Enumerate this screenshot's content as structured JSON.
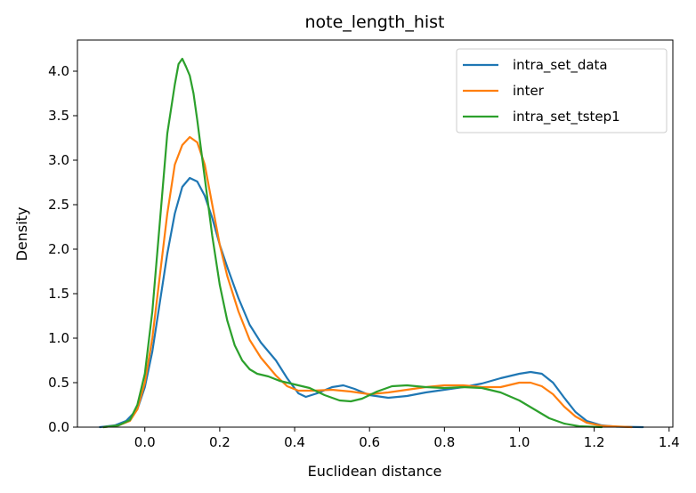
{
  "chart_data": {
    "type": "line",
    "title": "note_length_hist",
    "xlabel": "Euclidean distance",
    "ylabel": "Density",
    "xlim": [
      -0.18,
      1.41
    ],
    "ylim": [
      0.0,
      4.35
    ],
    "xticks": [
      0.0,
      0.2,
      0.4,
      0.6,
      0.8,
      1.0,
      1.2,
      1.4
    ],
    "xtick_labels": [
      "0.0",
      "0.2",
      "0.4",
      "0.6",
      "0.8",
      "1.0",
      "1.2",
      "1.4"
    ],
    "yticks": [
      0.0,
      0.5,
      1.0,
      1.5,
      2.0,
      2.5,
      3.0,
      3.5,
      4.0
    ],
    "ytick_labels": [
      "0.0",
      "0.5",
      "1.0",
      "1.5",
      "2.0",
      "2.5",
      "3.0",
      "3.5",
      "4.0"
    ],
    "grid": false,
    "legend_position": "top-right",
    "series": [
      {
        "name": "intra_set_data",
        "color": "#1f77b4",
        "points": [
          [
            -0.12,
            0.0
          ],
          [
            -0.08,
            0.02
          ],
          [
            -0.05,
            0.07
          ],
          [
            -0.02,
            0.2
          ],
          [
            0.0,
            0.45
          ],
          [
            0.02,
            0.85
          ],
          [
            0.04,
            1.4
          ],
          [
            0.06,
            1.95
          ],
          [
            0.08,
            2.4
          ],
          [
            0.1,
            2.7
          ],
          [
            0.12,
            2.8
          ],
          [
            0.14,
            2.76
          ],
          [
            0.16,
            2.6
          ],
          [
            0.18,
            2.35
          ],
          [
            0.2,
            2.05
          ],
          [
            0.22,
            1.8
          ],
          [
            0.25,
            1.45
          ],
          [
            0.28,
            1.15
          ],
          [
            0.31,
            0.95
          ],
          [
            0.35,
            0.75
          ],
          [
            0.38,
            0.55
          ],
          [
            0.41,
            0.38
          ],
          [
            0.43,
            0.34
          ],
          [
            0.46,
            0.38
          ],
          [
            0.5,
            0.45
          ],
          [
            0.53,
            0.47
          ],
          [
            0.56,
            0.43
          ],
          [
            0.6,
            0.36
          ],
          [
            0.65,
            0.33
          ],
          [
            0.7,
            0.35
          ],
          [
            0.75,
            0.39
          ],
          [
            0.8,
            0.42
          ],
          [
            0.85,
            0.45
          ],
          [
            0.9,
            0.49
          ],
          [
            0.95,
            0.55
          ],
          [
            1.0,
            0.6
          ],
          [
            1.03,
            0.62
          ],
          [
            1.06,
            0.6
          ],
          [
            1.09,
            0.5
          ],
          [
            1.12,
            0.33
          ],
          [
            1.15,
            0.17
          ],
          [
            1.18,
            0.07
          ],
          [
            1.22,
            0.02
          ],
          [
            1.26,
            0.005
          ],
          [
            1.33,
            0.0
          ]
        ]
      },
      {
        "name": "inter",
        "color": "#ff7f0e",
        "points": [
          [
            -0.11,
            0.0
          ],
          [
            -0.07,
            0.02
          ],
          [
            -0.04,
            0.07
          ],
          [
            -0.02,
            0.2
          ],
          [
            0.0,
            0.5
          ],
          [
            0.02,
            1.0
          ],
          [
            0.04,
            1.7
          ],
          [
            0.06,
            2.4
          ],
          [
            0.08,
            2.95
          ],
          [
            0.1,
            3.17
          ],
          [
            0.12,
            3.26
          ],
          [
            0.14,
            3.2
          ],
          [
            0.16,
            2.95
          ],
          [
            0.18,
            2.5
          ],
          [
            0.2,
            2.05
          ],
          [
            0.22,
            1.7
          ],
          [
            0.25,
            1.3
          ],
          [
            0.28,
            0.98
          ],
          [
            0.31,
            0.78
          ],
          [
            0.35,
            0.58
          ],
          [
            0.38,
            0.46
          ],
          [
            0.41,
            0.41
          ],
          [
            0.45,
            0.41
          ],
          [
            0.5,
            0.42
          ],
          [
            0.55,
            0.4
          ],
          [
            0.6,
            0.37
          ],
          [
            0.65,
            0.39
          ],
          [
            0.7,
            0.42
          ],
          [
            0.75,
            0.45
          ],
          [
            0.8,
            0.47
          ],
          [
            0.85,
            0.47
          ],
          [
            0.9,
            0.45
          ],
          [
            0.95,
            0.45
          ],
          [
            1.0,
            0.5
          ],
          [
            1.03,
            0.5
          ],
          [
            1.06,
            0.46
          ],
          [
            1.09,
            0.37
          ],
          [
            1.12,
            0.23
          ],
          [
            1.15,
            0.12
          ],
          [
            1.18,
            0.05
          ],
          [
            1.22,
            0.015
          ],
          [
            1.3,
            0.0
          ]
        ]
      },
      {
        "name": "intra_set_tstep1",
        "color": "#2ca02c",
        "points": [
          [
            -0.11,
            0.0
          ],
          [
            -0.07,
            0.02
          ],
          [
            -0.04,
            0.08
          ],
          [
            -0.02,
            0.25
          ],
          [
            0.0,
            0.6
          ],
          [
            0.02,
            1.3
          ],
          [
            0.04,
            2.3
          ],
          [
            0.06,
            3.3
          ],
          [
            0.08,
            3.85
          ],
          [
            0.09,
            4.08
          ],
          [
            0.1,
            4.14
          ],
          [
            0.11,
            4.05
          ],
          [
            0.12,
            3.95
          ],
          [
            0.13,
            3.75
          ],
          [
            0.14,
            3.45
          ],
          [
            0.16,
            2.8
          ],
          [
            0.18,
            2.15
          ],
          [
            0.2,
            1.6
          ],
          [
            0.22,
            1.2
          ],
          [
            0.24,
            0.92
          ],
          [
            0.26,
            0.75
          ],
          [
            0.28,
            0.65
          ],
          [
            0.3,
            0.6
          ],
          [
            0.33,
            0.57
          ],
          [
            0.36,
            0.52
          ],
          [
            0.4,
            0.48
          ],
          [
            0.44,
            0.44
          ],
          [
            0.48,
            0.36
          ],
          [
            0.52,
            0.3
          ],
          [
            0.55,
            0.29
          ],
          [
            0.58,
            0.32
          ],
          [
            0.62,
            0.4
          ],
          [
            0.66,
            0.46
          ],
          [
            0.7,
            0.47
          ],
          [
            0.75,
            0.45
          ],
          [
            0.8,
            0.44
          ],
          [
            0.85,
            0.45
          ],
          [
            0.9,
            0.44
          ],
          [
            0.95,
            0.39
          ],
          [
            1.0,
            0.3
          ],
          [
            1.04,
            0.2
          ],
          [
            1.08,
            0.1
          ],
          [
            1.12,
            0.04
          ],
          [
            1.16,
            0.01
          ],
          [
            1.22,
            0.0
          ]
        ]
      }
    ]
  }
}
